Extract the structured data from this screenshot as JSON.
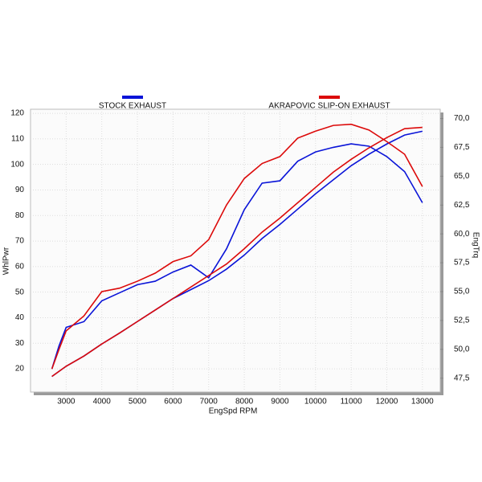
{
  "chart_data": {
    "type": "line",
    "x_label": "EngSpd  RPM",
    "y_label": "WhlPwr",
    "y2_label": "EngTrq",
    "x": [
      2600,
      2800,
      3000,
      3500,
      4000,
      4500,
      5000,
      5500,
      6000,
      6500,
      7000,
      7500,
      8000,
      8500,
      9000,
      9500,
      10000,
      10500,
      11000,
      11500,
      12000,
      12500,
      13000
    ],
    "series": [
      {
        "name": "STOCK EXHAUST",
        "color": "#0a14d8",
        "values": [
          17,
          19,
          21,
          25,
          29.7,
          34,
          38.5,
          43,
          47.5,
          51,
          54.5,
          59,
          64.5,
          71,
          76.5,
          82.5,
          88.5,
          94,
          99.5,
          104,
          108,
          111.5,
          113
        ],
        "values_y2": [
          48.3,
          50.3,
          51.9,
          52.4,
          54.2,
          54.9,
          55.6,
          55.9,
          56.7,
          57.3,
          56.2,
          58.7,
          62.1,
          64.4,
          64.6,
          66.3,
          67.1,
          67.5,
          67.8,
          67.6,
          66.7,
          65.4,
          62.7
        ]
      },
      {
        "name": "AKRAPOVIC SLIP-ON EXHAUST",
        "color": "#dc0a0a",
        "values": [
          17,
          19,
          21,
          25,
          29.7,
          34,
          38.5,
          43,
          47.5,
          52,
          56.5,
          61,
          67,
          73.5,
          79,
          85,
          91,
          97,
          102,
          106.5,
          110.5,
          114,
          114.5
        ],
        "values_y2": [
          48.3,
          50,
          51.6,
          52.9,
          55,
          55.3,
          55.9,
          56.6,
          57.6,
          58.1,
          59.5,
          62.5,
          64.8,
          66.1,
          66.7,
          68.3,
          68.9,
          69.4,
          69.5,
          69,
          68,
          66.9,
          64.1
        ]
      }
    ],
    "xlim": [
      2000,
      13500
    ],
    "xticks": [
      3000,
      4000,
      5000,
      6000,
      7000,
      8000,
      9000,
      10000,
      11000,
      12000,
      13000
    ],
    "ylim": [
      10.9,
      121.6
    ],
    "yticks": [
      20,
      30,
      40,
      50,
      60,
      70,
      80,
      90,
      100,
      110,
      120
    ],
    "y2lim": [
      46.3,
      70.8
    ],
    "y2ticks": [
      {
        "value": 47.5,
        "label": "47,5"
      },
      {
        "value": 50,
        "label": "50,0"
      },
      {
        "value": 52.5,
        "label": "52,5"
      },
      {
        "value": 55,
        "label": "55,0"
      },
      {
        "value": 57.5,
        "label": "57,5"
      },
      {
        "value": 60,
        "label": "60,0"
      },
      {
        "value": 62.5,
        "label": "62,5"
      },
      {
        "value": 65,
        "label": "65,0"
      },
      {
        "value": 67.5,
        "label": "67,5"
      },
      {
        "value": 70,
        "label": "70,0"
      }
    ],
    "grid": true
  }
}
